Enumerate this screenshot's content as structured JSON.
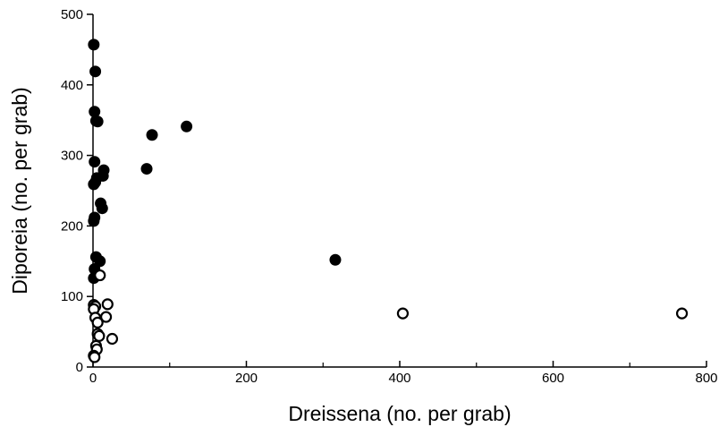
{
  "chart_data": {
    "type": "scatter",
    "title": "",
    "xlabel": "Dreissena (no. per grab)",
    "ylabel": "Diporeia (no. per grab)",
    "xlim": [
      0,
      800
    ],
    "ylim": [
      0,
      500
    ],
    "x_ticks": [
      0,
      200,
      400,
      600,
      800
    ],
    "x_minor_ticks": [
      100,
      300,
      500,
      700
    ],
    "y_ticks": [
      0,
      100,
      200,
      300,
      400,
      500
    ],
    "grid": false,
    "legend": "none",
    "series": [
      {
        "marker": "filled-circle",
        "color": "#000000",
        "points": [
          [
            1,
            457
          ],
          [
            3,
            419
          ],
          [
            2,
            362
          ],
          [
            4,
            349
          ],
          [
            6,
            348
          ],
          [
            2,
            291
          ],
          [
            1,
            259
          ],
          [
            3,
            262
          ],
          [
            5,
            268
          ],
          [
            2,
            212
          ],
          [
            1,
            207
          ],
          [
            14,
            279
          ],
          [
            13,
            271
          ],
          [
            10,
            232
          ],
          [
            12,
            225
          ],
          [
            70,
            281
          ],
          [
            77,
            329
          ],
          [
            122,
            341
          ],
          [
            316,
            152
          ],
          [
            4,
            156
          ],
          [
            9,
            150
          ],
          [
            2,
            139
          ],
          [
            1,
            126
          ]
        ]
      },
      {
        "marker": "open-circle",
        "color": "#000000",
        "points": [
          [
            9,
            130
          ],
          [
            1,
            88
          ],
          [
            3,
            86
          ],
          [
            19,
            89
          ],
          [
            1,
            82
          ],
          [
            17,
            71
          ],
          [
            3,
            70
          ],
          [
            6,
            63
          ],
          [
            6,
            47
          ],
          [
            8,
            44
          ],
          [
            25,
            40
          ],
          [
            4,
            30
          ],
          [
            5,
            25
          ],
          [
            1,
            16
          ],
          [
            2,
            14
          ],
          [
            404,
            76
          ],
          [
            768,
            76
          ]
        ]
      }
    ]
  }
}
